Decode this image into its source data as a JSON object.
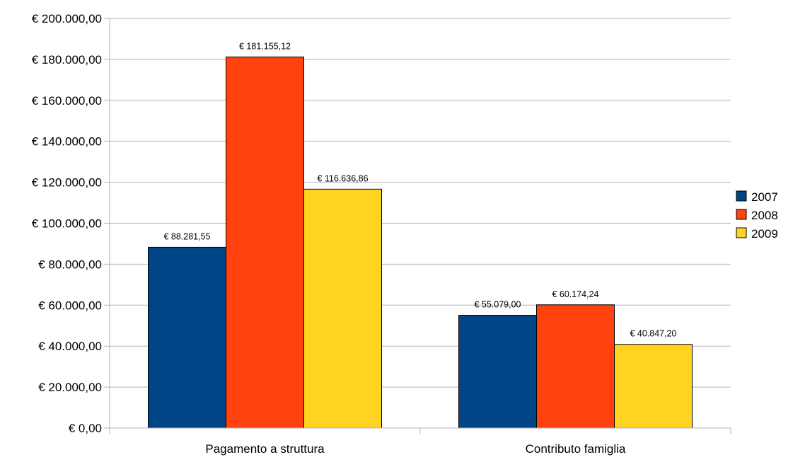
{
  "chart_data": {
    "type": "bar",
    "title": "",
    "xlabel": "",
    "ylabel": "",
    "categories": [
      "Pagamento a struttura",
      "Contributo famiglia"
    ],
    "series": [
      {
        "name": "2007",
        "color": "#004586",
        "values": [
          88281.55,
          55079.0
        ],
        "labels": [
          "€ 88.281,55",
          "€ 55.079,00"
        ]
      },
      {
        "name": "2008",
        "color": "#ff420e",
        "values": [
          181155.12,
          60174.24
        ],
        "labels": [
          "€ 181.155,12",
          "€ 60.174,24"
        ]
      },
      {
        "name": "2009",
        "color": "#ffd320",
        "values": [
          116636.86,
          40847.2
        ],
        "labels": [
          "€ 116.636,86",
          "€ 40.847,20"
        ]
      }
    ],
    "ylim": [
      0,
      200000
    ],
    "yticks": [
      {
        "value": 0,
        "label": "€ 0,00"
      },
      {
        "value": 20000,
        "label": "€ 20.000,00"
      },
      {
        "value": 40000,
        "label": "€ 40.000,00"
      },
      {
        "value": 60000,
        "label": "€ 60.000,00"
      },
      {
        "value": 80000,
        "label": "€ 80.000,00"
      },
      {
        "value": 100000,
        "label": "€ 100.000,00"
      },
      {
        "value": 120000,
        "label": "€ 120.000,00"
      },
      {
        "value": 140000,
        "label": "€ 140.000,00"
      },
      {
        "value": 160000,
        "label": "€ 160.000,00"
      },
      {
        "value": 180000,
        "label": "€ 180.000,00"
      },
      {
        "value": 200000,
        "label": "€ 200.000,00"
      }
    ],
    "grid": true,
    "legend": "right"
  }
}
